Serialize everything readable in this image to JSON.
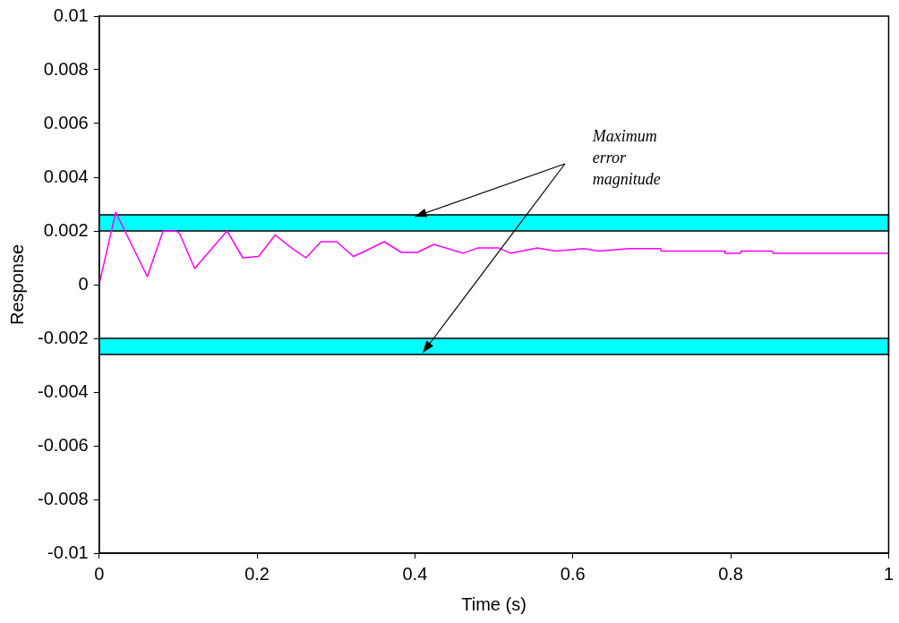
{
  "chart_data": {
    "type": "line",
    "xlabel": "Time (s)",
    "ylabel": "Response",
    "x": [
      0,
      0.021,
      0.061,
      0.081,
      0.097,
      0.102,
      0.121,
      0.162,
      0.182,
      0.202,
      0.223,
      0.245,
      0.262,
      0.281,
      0.301,
      0.322,
      0.337,
      0.361,
      0.383,
      0.403,
      0.424,
      0.461,
      0.48,
      0.506,
      0.521,
      0.555,
      0.578,
      0.614,
      0.633,
      0.671,
      0.711,
      0.712,
      0.792,
      0.793,
      0.812,
      0.813,
      0.852,
      0.854,
      1
    ],
    "series": [
      {
        "color": "#ff00ff",
        "values": [
          0,
          0.0027,
          0.0003,
          0.002,
          0.002,
          0.0019,
          0.0006,
          0.002,
          0.001,
          0.00105,
          0.00185,
          0.00134,
          0.001,
          0.0016,
          0.0016,
          0.00105,
          0.00125,
          0.0016,
          0.0012,
          0.0012,
          0.0015,
          0.00117,
          0.00137,
          0.00137,
          0.00117,
          0.00137,
          0.00125,
          0.00134,
          0.00125,
          0.00134,
          0.00134,
          0.00125,
          0.00125,
          0.00117,
          0.00117,
          0.00125,
          0.00125,
          0.00117,
          0.00117
        ]
      }
    ],
    "xlim": [
      0,
      1
    ],
    "xticks": [
      0,
      0.2,
      0.4,
      0.6,
      0.8,
      1
    ],
    "ylim": [
      -0.01,
      0.01
    ],
    "yticks": [
      -0.01,
      -0.008,
      -0.006,
      -0.004,
      -0.002,
      0,
      0.002,
      0.004,
      0.006,
      0.008,
      0.01
    ],
    "bands": [
      {
        "axis": "y",
        "from": 0.002,
        "to": 0.0026,
        "color": "#00ffff"
      },
      {
        "axis": "y",
        "from": -0.0026,
        "to": -0.002,
        "color": "#00ffff"
      }
    ],
    "annotations": [
      "Maximum error magnitude"
    ],
    "grid": false,
    "legend": false,
    "marker": "none",
    "line_style": "solid"
  }
}
